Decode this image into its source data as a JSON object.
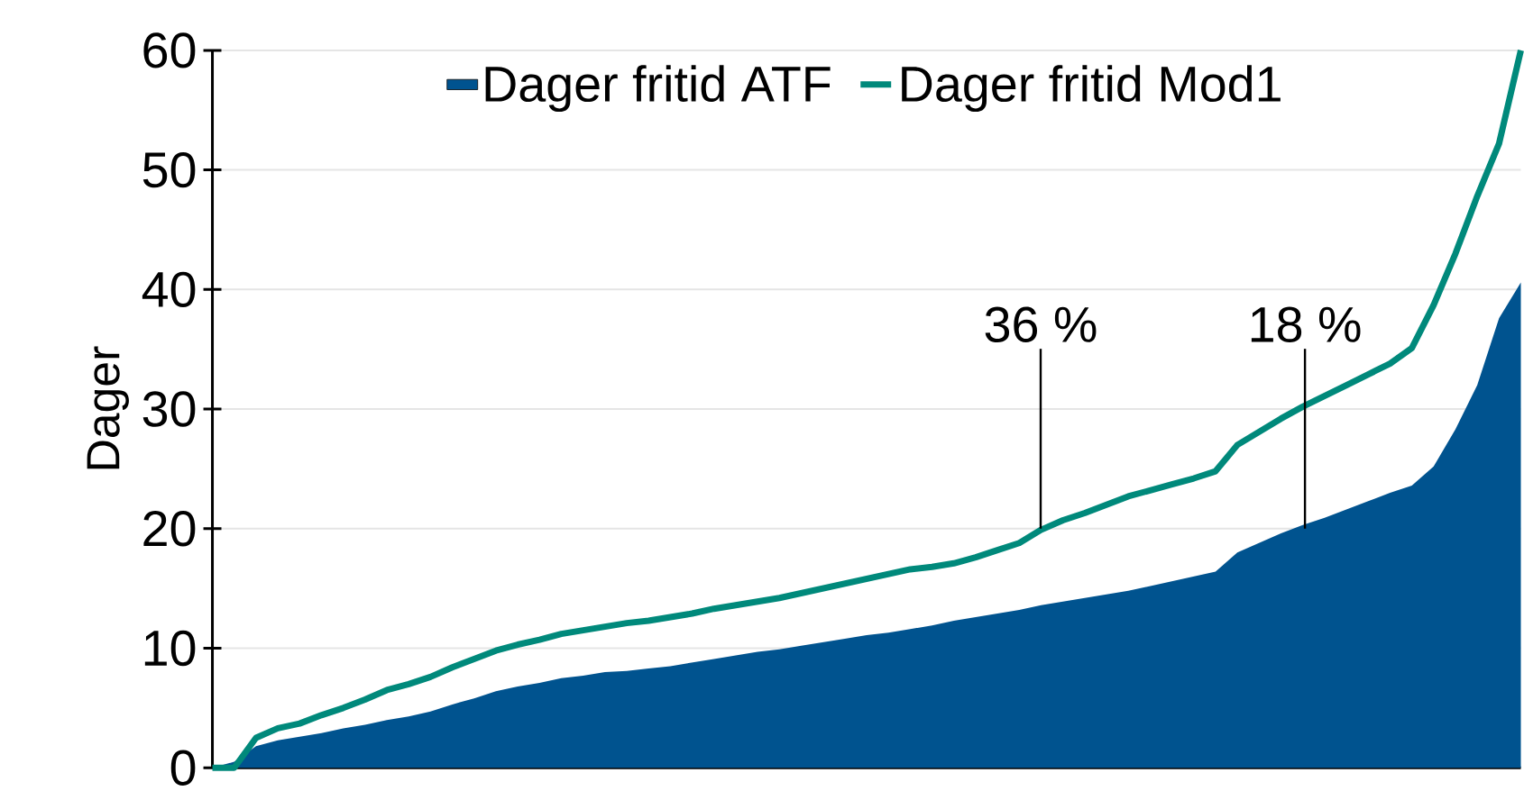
{
  "chart_data": {
    "type": "line",
    "ylabel": "Dager",
    "categories": [
      null,
      null,
      null,
      null,
      null,
      null,
      null,
      null,
      null,
      null,
      null,
      null,
      null,
      null,
      null,
      null,
      null,
      null,
      null,
      null,
      null,
      null,
      null,
      null,
      null,
      null,
      null,
      null,
      null,
      null,
      null,
      null,
      null,
      null,
      null,
      null,
      null,
      null,
      null,
      null,
      null,
      null,
      null,
      null,
      null,
      null,
      null,
      null,
      null,
      null,
      null,
      null,
      null,
      null,
      null,
      null,
      null,
      null,
      null,
      null,
      null
    ],
    "series": [
      {
        "name": "Dager fritid ATF",
        "type": "area",
        "color": "#00538f",
        "values": [
          0,
          0.5,
          1.8,
          2.3,
          2.6,
          2.9,
          3.3,
          3.6,
          4.0,
          4.3,
          4.7,
          5.3,
          5.8,
          6.4,
          6.8,
          7.1,
          7.5,
          7.7,
          8.0,
          8.1,
          8.3,
          8.5,
          8.8,
          9.1,
          9.4,
          9.7,
          9.9,
          10.2,
          10.5,
          10.8,
          11.1,
          11.3,
          11.6,
          11.9,
          12.3,
          12.6,
          12.9,
          13.2,
          13.6,
          13.9,
          14.2,
          14.5,
          14.8,
          15.2,
          15.6,
          16.0,
          16.4,
          18.0,
          18.8,
          19.6,
          20.3,
          20.9,
          21.6,
          22.3,
          23.0,
          23.6,
          25.2,
          28.3,
          32.0,
          37.6,
          40.6
        ]
      },
      {
        "name": "Dager fritid Mod1",
        "color": "#00897b",
        "values": [
          0,
          0,
          2.5,
          3.3,
          3.7,
          4.4,
          5.0,
          5.7,
          6.5,
          7.0,
          7.6,
          8.4,
          9.1,
          9.8,
          10.3,
          10.7,
          11.2,
          11.5,
          11.8,
          12.1,
          12.3,
          12.6,
          12.9,
          13.3,
          13.6,
          13.9,
          14.2,
          14.6,
          15.0,
          15.4,
          15.8,
          16.2,
          16.6,
          16.8,
          17.1,
          17.6,
          18.2,
          18.8,
          19.9,
          20.7,
          21.3,
          22.0,
          22.7,
          23.2,
          23.7,
          24.2,
          24.8,
          27.0,
          28.1,
          29.2,
          30.2,
          31.1,
          32.0,
          32.9,
          33.8,
          35.1,
          38.7,
          43.0,
          47.8,
          52.2,
          60
        ]
      }
    ],
    "ylim": [
      0,
      60
    ],
    "yticks": [
      0,
      10,
      20,
      30,
      40,
      50,
      60
    ],
    "grid": "y",
    "legend": "top",
    "annotations": [
      {
        "text": "36 %",
        "y": 20
      },
      {
        "text": "18 %",
        "y": 20
      }
    ]
  }
}
